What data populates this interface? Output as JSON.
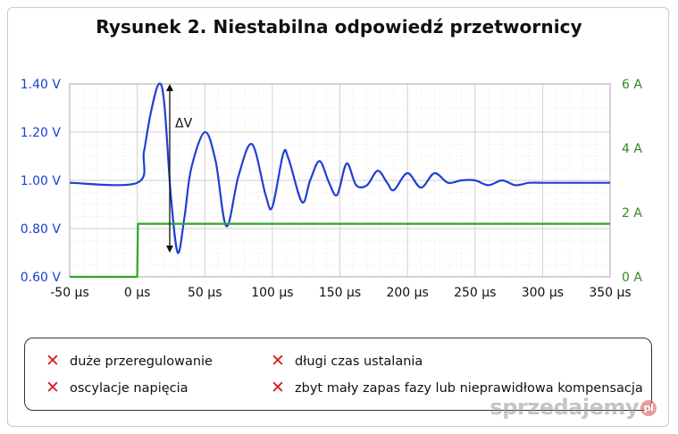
{
  "title": "Rysunek 2. Niestabilna odpowiedź przetwornicy",
  "chart_data": {
    "type": "line",
    "x_unit": "µs",
    "xlim": [
      -50,
      350
    ],
    "x_ticks": [
      "-50 µs",
      "0 µs",
      "50 µs",
      "100 µs",
      "150 µs",
      "200 µs",
      "250 µs",
      "300 µs",
      "350 µs"
    ],
    "y_left_ylim": [
      0.6,
      1.4
    ],
    "y_left_ticks": [
      "0.60 V",
      "0.80 V",
      "1.00 V",
      "1.20 V",
      "1.40 V"
    ],
    "y_right_ylim": [
      0,
      6
    ],
    "y_right_ticks": [
      "0 A",
      "2 A",
      "4 A",
      "6 A"
    ],
    "grid": true,
    "annotation": "ΔV",
    "series": [
      {
        "color": "#1f3fd4",
        "axis": "left",
        "x": [
          -50,
          0,
          5,
          10,
          16,
          20,
          25,
          30,
          35,
          40,
          50,
          58,
          66,
          75,
          85,
          95,
          100,
          108,
          112,
          122,
          128,
          135,
          142,
          148,
          155,
          162,
          170,
          178,
          185,
          190,
          200,
          210,
          220,
          230,
          240,
          250,
          260,
          270,
          280,
          290,
          300,
          310,
          320,
          330,
          340,
          350
        ],
        "y": [
          0.99,
          0.99,
          1.12,
          1.28,
          1.4,
          1.32,
          0.93,
          0.7,
          0.85,
          1.05,
          1.2,
          1.08,
          0.81,
          1.02,
          1.15,
          0.94,
          0.89,
          1.11,
          1.09,
          0.91,
          1.0,
          1.08,
          0.99,
          0.94,
          1.07,
          0.98,
          0.98,
          1.04,
          0.99,
          0.96,
          1.03,
          0.97,
          1.03,
          0.99,
          1.0,
          1.0,
          0.98,
          1.0,
          0.98,
          0.99,
          0.99,
          0.99,
          0.99,
          0.99,
          0.99,
          0.99
        ]
      },
      {
        "color": "#2fa526",
        "axis": "right",
        "x": [
          -50,
          0,
          0.5,
          350
        ],
        "y": [
          0,
          0,
          1.65,
          1.65
        ]
      }
    ]
  },
  "legend": {
    "items": [
      "duże przeregulowanie",
      "długi czas ustalania",
      "oscylacje napięcia",
      "zbyt mały zapas fazy lub nieprawidłowa kompensacja"
    ],
    "mark": "✕"
  },
  "watermark": {
    "text": "sprzedajemy",
    "badge": "pl"
  },
  "colors": {
    "left_axis": "#1b3fd1",
    "right_axis": "#2f8a1f",
    "x_mark": "#d81e1e"
  }
}
